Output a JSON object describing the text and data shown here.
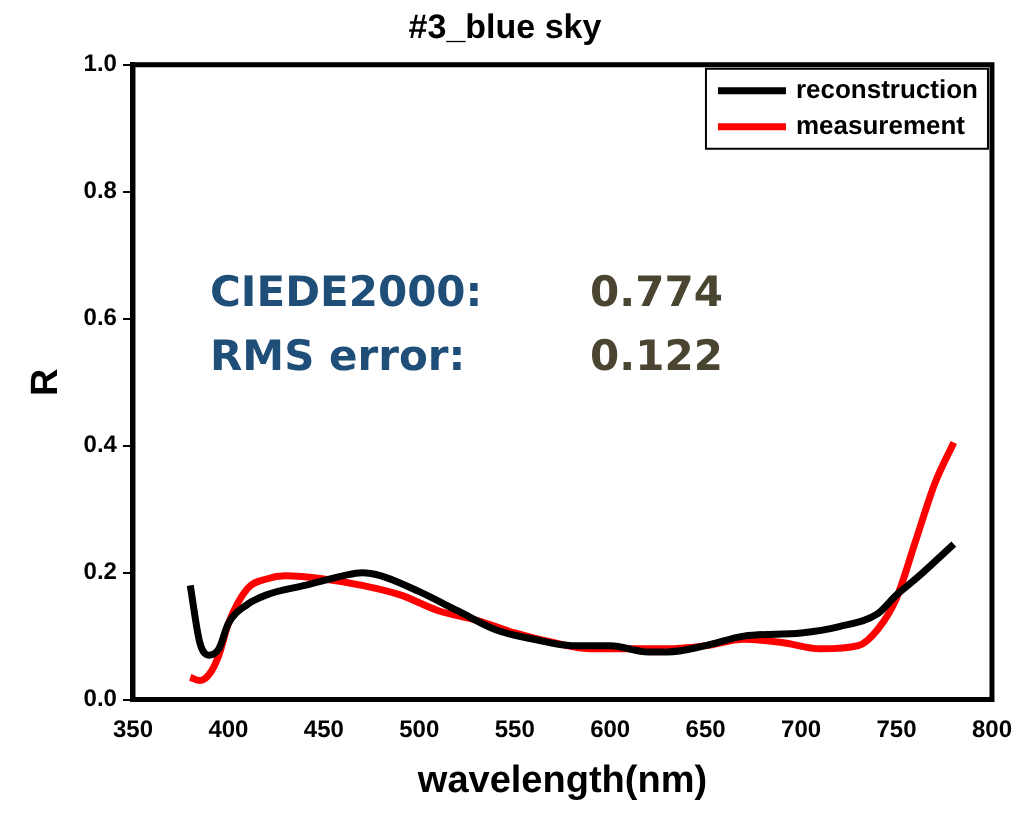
{
  "chart_data": {
    "type": "line",
    "title": "#3_blue sky",
    "xlabel": "wavelength(nm)",
    "ylabel": "R",
    "annotations": [
      "CIEDE2000:",
      "0.774",
      "RMS error:",
      "0.122"
    ],
    "xlim": [
      350,
      800
    ],
    "xticks": [
      350,
      400,
      450,
      500,
      550,
      600,
      650,
      700,
      750,
      800
    ],
    "ylim": [
      0,
      1
    ],
    "yticks": [
      {
        "value": 0,
        "label": "0.0"
      },
      {
        "value": 0.2,
        "label": "0.2"
      },
      {
        "value": 0.4,
        "label": "0.4"
      },
      {
        "value": 0.6,
        "label": "0.6"
      },
      {
        "value": 0.8,
        "label": "0.8"
      },
      {
        "value": 1,
        "label": "1.0"
      }
    ],
    "grid": false,
    "legend": "top right",
    "marker": "none",
    "line_style": "solid",
    "series": [
      {
        "name": "reconstruction",
        "color": "#000000",
        "x": [
          380,
          385,
          390,
          395,
          400,
          410,
          420,
          440,
          460,
          470,
          480,
          500,
          520,
          540,
          560,
          580,
          600,
          620,
          630,
          650,
          670,
          700,
          720,
          740,
          750,
          760,
          780
        ],
        "values": [
          0.18,
          0.09,
          0.07,
          0.08,
          0.12,
          0.15,
          0.165,
          0.18,
          0.195,
          0.2,
          0.195,
          0.17,
          0.14,
          0.11,
          0.095,
          0.085,
          0.085,
          0.075,
          0.075,
          0.085,
          0.1,
          0.105,
          0.115,
          0.135,
          0.165,
          0.19,
          0.245
        ]
      },
      {
        "name": "measurement",
        "color": "#ff0000",
        "x": [
          380,
          385,
          390,
          395,
          400,
          410,
          420,
          430,
          450,
          470,
          490,
          510,
          530,
          550,
          570,
          590,
          610,
          630,
          650,
          670,
          690,
          710,
          730,
          740,
          750,
          760,
          770,
          780
        ],
        "values": [
          0.035,
          0.03,
          0.04,
          0.07,
          0.12,
          0.175,
          0.19,
          0.195,
          0.19,
          0.18,
          0.165,
          0.14,
          0.125,
          0.105,
          0.09,
          0.08,
          0.08,
          0.08,
          0.085,
          0.095,
          0.09,
          0.08,
          0.085,
          0.11,
          0.16,
          0.25,
          0.34,
          0.405
        ]
      }
    ]
  }
}
